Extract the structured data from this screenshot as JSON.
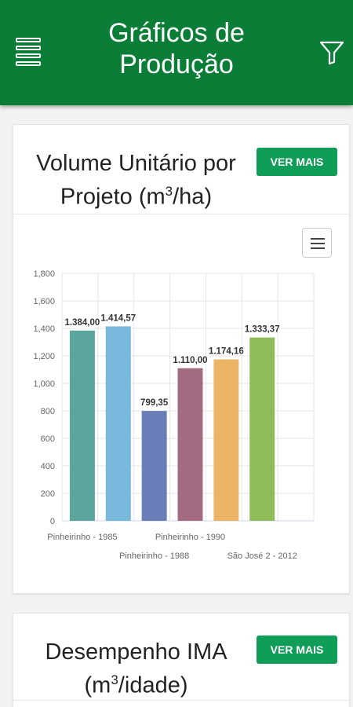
{
  "header": {
    "title": "Gráficos de Produção",
    "menu_icon": "hamburger-icon",
    "filter_icon": "filter-funnel-icon",
    "background": "#0a7d37"
  },
  "cards": [
    {
      "title_main": "Volume Unitário por Projeto (m",
      "title_sup": "3",
      "title_end": "/ha)",
      "button_label": "VER MAIS",
      "chart_menu_icon": "hamburger-icon"
    },
    {
      "title_main": "Desempenho IMA (m",
      "title_sup": "3",
      "title_end": "/idade)",
      "button_label": "VER MAIS"
    }
  ],
  "chart_data": {
    "type": "bar",
    "categories": [
      "Pinheirinho - 1985",
      "",
      "Pinheirinho - 1988",
      "Pinheirinho - 1990",
      "",
      "São José 2 - 2012"
    ],
    "values": [
      1384.0,
      1414.57,
      799.35,
      1110.0,
      1174.16,
      1333.37
    ],
    "data_labels": [
      "1.384,00",
      "1.414,57",
      "799,35",
      "1.110,00",
      "1.174,16",
      "1.333,37"
    ],
    "colors": [
      "#5ba69c",
      "#79b8dd",
      "#6a7fba",
      "#a36b82",
      "#ecb566",
      "#8fbb58"
    ],
    "ylim": [
      0,
      1800
    ],
    "yticks": [
      "0",
      "200",
      "400",
      "600",
      "800",
      "1,000",
      "1,200",
      "1,400",
      "1,600",
      "1,800"
    ],
    "xlabels": [
      {
        "text": "Pinheirinho - 1985",
        "row": 1
      },
      {
        "text": "Pinheirinho - 1990",
        "row": 1
      },
      {
        "text": "Pinheirinho - 1988",
        "row": 2
      },
      {
        "text": "São José 2 - 2012",
        "row": 2
      }
    ],
    "grid": true,
    "legend": "none"
  }
}
